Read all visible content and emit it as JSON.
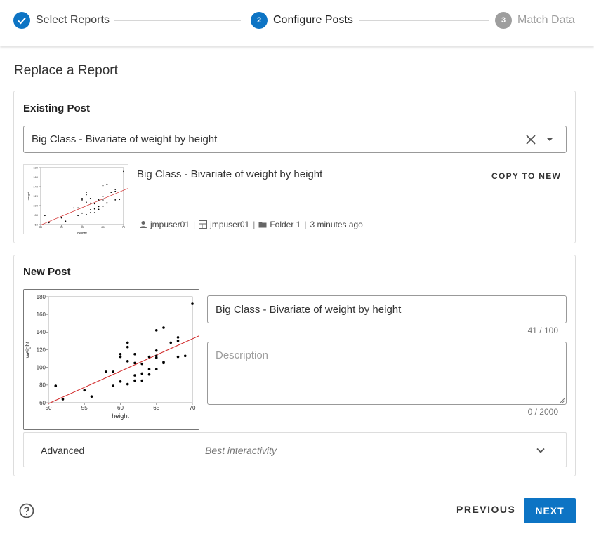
{
  "stepper": {
    "steps": [
      {
        "number": "",
        "label": "Select Reports",
        "state": "completed"
      },
      {
        "number": "2",
        "label": "Configure Posts",
        "state": "active"
      },
      {
        "number": "3",
        "label": "Match Data",
        "state": "pending"
      }
    ]
  },
  "page": {
    "title": "Replace a Report"
  },
  "existing_post": {
    "section_title": "Existing Post",
    "selected_value": "Big Class - Bivariate of weight by height",
    "name": "Big Class - Bivariate of weight by height",
    "copy_button": "COPY TO NEW",
    "meta": {
      "author": "jmpuser01",
      "space": "jmpuser01",
      "folder": "Folder 1",
      "time": "3 minutes ago"
    }
  },
  "new_post": {
    "section_title": "New Post",
    "title_value": "Big Class - Bivariate of weight by height",
    "title_counter": "41 / 100",
    "description_placeholder": "Description",
    "description_counter": "0 / 2000",
    "advanced_label": "Advanced",
    "advanced_value": "Best interactivity"
  },
  "footer": {
    "previous_label": "PREVIOUS",
    "next_label": "NEXT"
  },
  "colors": {
    "accent": "#0d74c4",
    "fit_line": "#d32f2f",
    "step_pending": "#9e9e9e"
  },
  "chart_data": {
    "type": "scatter",
    "title": "",
    "xlabel": "height",
    "ylabel": "weight",
    "xlim": [
      50,
      70
    ],
    "ylim": [
      60,
      180
    ],
    "x_ticks": [
      "50",
      "55",
      "60",
      "65",
      "70"
    ],
    "y_ticks": [
      "60",
      "80",
      "100",
      "120",
      "140",
      "160",
      "180"
    ],
    "points": [
      [
        51,
        79
      ],
      [
        52,
        64
      ],
      [
        55,
        74
      ],
      [
        56,
        67
      ],
      [
        58,
        95
      ],
      [
        59,
        95
      ],
      [
        59,
        79
      ],
      [
        60,
        112
      ],
      [
        60,
        115
      ],
      [
        60,
        84
      ],
      [
        61,
        128
      ],
      [
        61,
        123
      ],
      [
        61,
        107
      ],
      [
        61,
        81
      ],
      [
        62,
        115
      ],
      [
        62,
        105
      ],
      [
        62,
        91
      ],
      [
        62,
        85
      ],
      [
        63,
        104
      ],
      [
        63,
        93
      ],
      [
        63,
        85
      ],
      [
        64,
        112
      ],
      [
        64,
        98
      ],
      [
        64,
        92
      ],
      [
        65,
        142
      ],
      [
        65,
        119
      ],
      [
        65,
        111
      ],
      [
        65,
        113
      ],
      [
        65,
        98
      ],
      [
        66,
        145
      ],
      [
        66,
        106
      ],
      [
        66,
        105
      ],
      [
        67,
        128
      ],
      [
        68,
        134
      ],
      [
        68,
        130
      ],
      [
        68,
        112
      ],
      [
        69,
        113
      ],
      [
        70,
        172
      ]
    ],
    "fit_line": [
      [
        50,
        59
      ],
      [
        71,
        136
      ]
    ]
  }
}
